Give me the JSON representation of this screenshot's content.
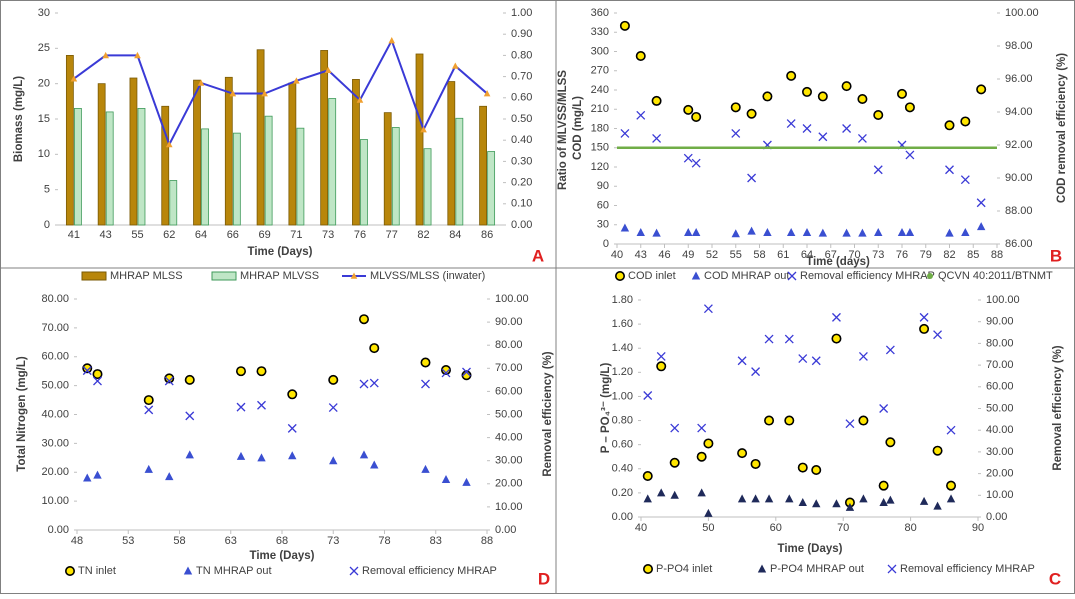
{
  "chart_data": [
    {
      "type": "bar",
      "panel_label": "A",
      "xlabel": "Time (Days)",
      "ylabel": "Biomass (mg/L)",
      "y2label": "Ratio of MLVSS/MLSS",
      "categories": [
        "41",
        "43",
        "55",
        "62",
        "64",
        "66",
        "69",
        "71",
        "73",
        "76",
        "77",
        "82",
        "84",
        "86"
      ],
      "ylim": [
        0,
        30
      ],
      "yticks": [
        0,
        5,
        10,
        15,
        20,
        25,
        30
      ],
      "y2lim": [
        0,
        1
      ],
      "y2ticks": [
        {
          "value": 0,
          "label": "0.00"
        },
        {
          "value": 0.1,
          "label": "0.10"
        },
        {
          "value": 0.2,
          "label": "0.20"
        },
        {
          "value": 0.3,
          "label": "0.30"
        },
        {
          "value": 0.4,
          "label": "0.40"
        },
        {
          "value": 0.5,
          "label": "0.50"
        },
        {
          "value": 0.6,
          "label": "0.60"
        },
        {
          "value": 0.7,
          "label": "0.70"
        },
        {
          "value": 0.8,
          "label": "0.80"
        },
        {
          "value": 0.9,
          "label": "0.90"
        },
        {
          "value": 1,
          "label": "1.00"
        }
      ],
      "series": [
        {
          "name": "MHRAP MLSS",
          "kind": "bar",
          "color": "#b8860b",
          "values": [
            24,
            20,
            20.8,
            16.8,
            20.5,
            20.9,
            24.8,
            20.1,
            24.7,
            20.6,
            15.9,
            24.2,
            20.3,
            16.8
          ]
        },
        {
          "name": "MHRAP MLVSS",
          "kind": "bar",
          "color": "#bfe6c6",
          "values": [
            16.5,
            16,
            16.5,
            6.3,
            13.6,
            13,
            15.4,
            13.7,
            17.9,
            12.1,
            13.8,
            10.8,
            15.1,
            10.4
          ]
        },
        {
          "name": "MLVSS/MLSS (inwater)",
          "kind": "line",
          "axis": "y2",
          "color": "#3a3ad6",
          "marker_color": "#f0a030",
          "values": [
            0.69,
            0.8,
            0.8,
            0.38,
            0.67,
            0.62,
            0.62,
            0.68,
            0.73,
            0.59,
            0.87,
            0.45,
            0.75,
            0.62
          ]
        }
      ]
    },
    {
      "type": "scatter",
      "panel_label": "B",
      "xlabel": "Time (days)",
      "ylabel": "COD (mg/L)",
      "y2label": "COD removal efficiency (%)",
      "xlim": [
        40,
        88
      ],
      "xticks": [
        40,
        43,
        46,
        49,
        52,
        55,
        58,
        61,
        64,
        67,
        70,
        73,
        76,
        79,
        82,
        85,
        88
      ],
      "ylim": [
        0,
        360
      ],
      "yticks": [
        0,
        30,
        60,
        90,
        120,
        150,
        180,
        210,
        240,
        270,
        300,
        330,
        360
      ],
      "y2lim": [
        86,
        100
      ],
      "y2ticks": [
        {
          "value": 86,
          "label": "86.00"
        },
        {
          "value": 88,
          "label": "88.00"
        },
        {
          "value": 90,
          "label": "90.00"
        },
        {
          "value": 92,
          "label": "92.00"
        },
        {
          "value": 94,
          "label": "94.00"
        },
        {
          "value": 96,
          "label": "96.00"
        },
        {
          "value": 98,
          "label": "98.00"
        },
        {
          "value": 100,
          "label": "100.00"
        }
      ],
      "series": [
        {
          "name": "COD inlet",
          "kind": "scatter",
          "marker": "circle",
          "color": "#ffe600",
          "x": [
            41,
            43,
            45,
            49,
            50,
            55,
            57,
            59,
            62,
            64,
            66,
            69,
            71,
            73,
            76,
            77,
            82,
            84,
            86
          ],
          "values": [
            340,
            293,
            223,
            209,
            198,
            213,
            203,
            230,
            262,
            237,
            230,
            246,
            226,
            201,
            234,
            213,
            185,
            191,
            241
          ]
        },
        {
          "name": "COD MHRAP out",
          "kind": "scatter",
          "marker": "triangle",
          "color": "#3a4fd1",
          "x": [
            41,
            43,
            45,
            49,
            50,
            55,
            57,
            59,
            62,
            64,
            66,
            69,
            71,
            73,
            76,
            77,
            82,
            84,
            86
          ],
          "values": [
            25,
            18,
            17,
            18,
            18,
            16,
            20,
            18,
            18,
            18,
            17,
            17,
            17,
            18,
            18,
            18,
            17,
            18,
            27
          ]
        },
        {
          "name": "Removal efficiency MHRAP",
          "kind": "scatter",
          "marker": "x",
          "axis": "y2",
          "color": "#3a3ad6",
          "x": [
            41,
            43,
            45,
            49,
            50,
            55,
            57,
            59,
            62,
            64,
            66,
            69,
            71,
            73,
            76,
            77,
            82,
            84,
            86
          ],
          "values": [
            92.7,
            93.8,
            92.4,
            91.2,
            90.9,
            92.7,
            90,
            92,
            93.3,
            93,
            92.5,
            93,
            92.4,
            90.5,
            92,
            91.4,
            90.5,
            89.9,
            88.5
          ]
        },
        {
          "name": "QCVN 40:2011/BTNMT",
          "kind": "hline",
          "color": "#70ad47",
          "x": [
            40,
            88
          ],
          "values": [
            150,
            150
          ]
        }
      ]
    },
    {
      "type": "scatter",
      "panel_label": "D",
      "xlabel": "Time (Days)",
      "ylabel": "Total Nitrogen (mg/L)",
      "y2label": "Removal efficiency (%)",
      "xlim": [
        48,
        88
      ],
      "xticks": [
        48,
        53,
        58,
        63,
        68,
        73,
        78,
        83,
        88
      ],
      "ylim": [
        0,
        80
      ],
      "yticks": [
        {
          "value": 0,
          "label": "0.00"
        },
        {
          "value": 10,
          "label": "10.00"
        },
        {
          "value": 20,
          "label": "20.00"
        },
        {
          "value": 30,
          "label": "30.00"
        },
        {
          "value": 40,
          "label": "40.00"
        },
        {
          "value": 50,
          "label": "50.00"
        },
        {
          "value": 60,
          "label": "60.00"
        },
        {
          "value": 70,
          "label": "70.00"
        },
        {
          "value": 80,
          "label": "80.00"
        }
      ],
      "y2lim": [
        0,
        100
      ],
      "y2ticks": [
        {
          "value": 0,
          "label": "0.00"
        },
        {
          "value": 10,
          "label": "10.00"
        },
        {
          "value": 20,
          "label": "20.00"
        },
        {
          "value": 30,
          "label": "30.00"
        },
        {
          "value": 40,
          "label": "40.00"
        },
        {
          "value": 50,
          "label": "50.00"
        },
        {
          "value": 60,
          "label": "60.00"
        },
        {
          "value": 70,
          "label": "70.00"
        },
        {
          "value": 80,
          "label": "80.00"
        },
        {
          "value": 90,
          "label": "90.00"
        },
        {
          "value": 100,
          "label": "100.00"
        }
      ],
      "series": [
        {
          "name": "TN inlet",
          "kind": "scatter",
          "marker": "circle",
          "color": "#ffe600",
          "x": [
            49,
            50,
            55,
            57,
            59,
            64,
            66,
            69,
            73,
            76,
            77,
            82,
            84,
            86
          ],
          "values": [
            56,
            54,
            45,
            52.5,
            52,
            55,
            55,
            47,
            52,
            73,
            63,
            58,
            55.4,
            53.6
          ]
        },
        {
          "name": "TN  MHRAP out",
          "kind": "scatter",
          "marker": "triangle",
          "color": "#3a4fd1",
          "x": [
            49,
            50,
            55,
            57,
            59,
            64,
            66,
            69,
            73,
            76,
            77,
            82,
            84,
            86
          ],
          "values": [
            18,
            19,
            21,
            18.5,
            26,
            25.5,
            25,
            25.7,
            24,
            26,
            22.5,
            21,
            17.5,
            16.5
          ]
        },
        {
          "name": "Removal efficiency MHRAP",
          "kind": "scatter",
          "marker": "x",
          "axis": "y2",
          "color": "#3a3ad6",
          "x": [
            49,
            50,
            55,
            57,
            59,
            64,
            66,
            69,
            73,
            76,
            77,
            82,
            84,
            86
          ],
          "values": [
            69,
            64.5,
            52,
            64.5,
            49.4,
            53.2,
            54,
            44,
            53,
            63.2,
            63.6,
            63.2,
            68,
            68.4
          ]
        }
      ]
    },
    {
      "type": "scatter",
      "panel_label": "C",
      "xlabel": "Time (Days)",
      "ylabel": "P – PO₄³⁻ (mg/L)",
      "y2label": "Removal efficiency (%)",
      "xlim": [
        40,
        90
      ],
      "xticks": [
        40,
        50,
        60,
        70,
        80,
        90
      ],
      "ylim": [
        0,
        1.8
      ],
      "yticks": [
        {
          "value": 0,
          "label": "0.00"
        },
        {
          "value": 0.2,
          "label": "0.20"
        },
        {
          "value": 0.4,
          "label": "0.40"
        },
        {
          "value": 0.6,
          "label": "0.60"
        },
        {
          "value": 0.8,
          "label": "0.80"
        },
        {
          "value": 1,
          "label": "1.00"
        },
        {
          "value": 1.2,
          "label": "1.20"
        },
        {
          "value": 1.4,
          "label": "1.40"
        },
        {
          "value": 1.6,
          "label": "1.60"
        },
        {
          "value": 1.8,
          "label": "1.80"
        }
      ],
      "y2lim": [
        0,
        100
      ],
      "y2ticks": [
        {
          "value": 0,
          "label": "0.00"
        },
        {
          "value": 10,
          "label": "10.00"
        },
        {
          "value": 20,
          "label": "20.00"
        },
        {
          "value": 30,
          "label": "30.00"
        },
        {
          "value": 40,
          "label": "40.00"
        },
        {
          "value": 50,
          "label": "50.00"
        },
        {
          "value": 60,
          "label": "60.00"
        },
        {
          "value": 70,
          "label": "70.00"
        },
        {
          "value": 80,
          "label": "80.00"
        },
        {
          "value": 90,
          "label": "90.00"
        },
        {
          "value": 100,
          "label": "100.00"
        }
      ],
      "series": [
        {
          "name": "P-PO4 inlet",
          "kind": "scatter",
          "marker": "circle",
          "color": "#ffe600",
          "x": [
            41,
            43,
            45,
            49,
            50,
            55,
            57,
            59,
            62,
            64,
            66,
            69,
            71,
            73,
            76,
            77,
            82,
            84,
            86
          ],
          "values": [
            0.34,
            1.25,
            0.45,
            0.5,
            0.61,
            0.53,
            0.44,
            0.8,
            0.8,
            0.41,
            0.39,
            1.48,
            0.12,
            0.8,
            0.26,
            0.62,
            1.56,
            0.55,
            0.26
          ]
        },
        {
          "name": "P-PO4 MHRAP out",
          "kind": "scatter",
          "marker": "triangle",
          "color": "#1f2a5a",
          "x": [
            41,
            43,
            45,
            49,
            50,
            55,
            57,
            59,
            62,
            64,
            66,
            69,
            71,
            73,
            76,
            77,
            82,
            84,
            86
          ],
          "values": [
            0.15,
            0.2,
            0.18,
            0.2,
            0.03,
            0.15,
            0.15,
            0.15,
            0.15,
            0.12,
            0.11,
            0.11,
            0.08,
            0.15,
            0.12,
            0.14,
            0.13,
            0.09,
            0.15
          ]
        },
        {
          "name": "Removal efficiency MHRAP",
          "kind": "scatter",
          "marker": "x",
          "axis": "y2",
          "color": "#3a3ad6",
          "x": [
            41,
            43,
            45,
            49,
            50,
            55,
            57,
            59,
            62,
            64,
            66,
            69,
            71,
            73,
            76,
            77,
            82,
            84,
            86
          ],
          "values": [
            56,
            74,
            41,
            41,
            96,
            72,
            67,
            82,
            82,
            73,
            72,
            92,
            43,
            74,
            50,
            77,
            92,
            84,
            40
          ]
        }
      ]
    }
  ]
}
